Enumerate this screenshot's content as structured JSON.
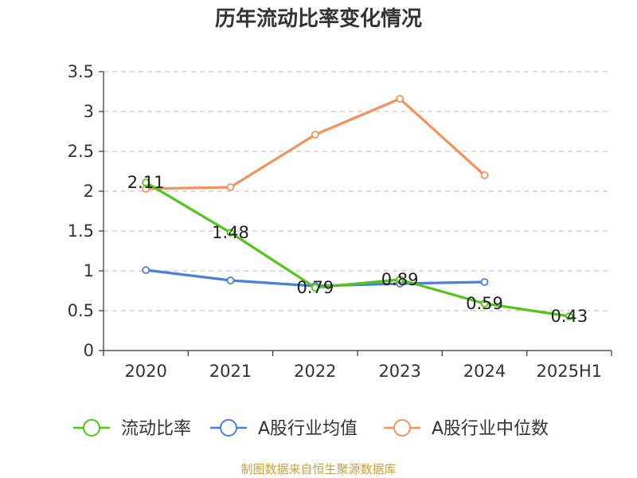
{
  "chart_data": {
    "type": "line",
    "title": "历年流动比率变化情况",
    "categories": [
      "2020",
      "2021",
      "2022",
      "2023",
      "2024",
      "2025H1"
    ],
    "ylim": [
      0,
      3.5
    ],
    "yticks": [
      "0",
      "0.5",
      "1",
      "1.5",
      "2",
      "2.5",
      "3",
      "3.5"
    ],
    "grid": true,
    "legend_position": "bottom",
    "series": [
      {
        "name": "流动比率",
        "color": "#52c41a",
        "values": [
          2.11,
          1.48,
          0.79,
          0.89,
          0.59,
          0.43
        ],
        "labels": [
          "2.11",
          "1.48",
          "0.79",
          "0.89",
          "0.59",
          "0.43"
        ]
      },
      {
        "name": "A股行业均值",
        "color": "#4a7fdc",
        "values": [
          1.01,
          0.88,
          0.81,
          0.84,
          0.86,
          null
        ]
      },
      {
        "name": "A股行业中位数",
        "color": "#f4925e",
        "values": [
          2.03,
          2.05,
          2.71,
          3.16,
          2.2,
          null
        ]
      }
    ],
    "source": "制图数据来自恒生聚源数据库",
    "source_color": "#c8a044"
  }
}
